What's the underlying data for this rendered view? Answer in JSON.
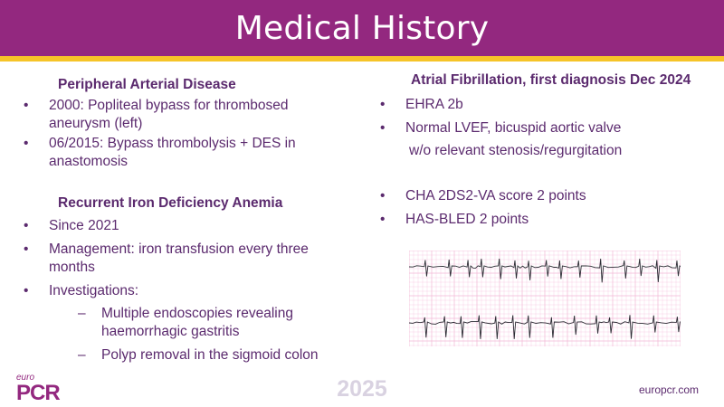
{
  "slide": {
    "title": "Medical History",
    "left": {
      "pad_heading": "Peripheral Arterial Disease",
      "pad_items": [
        "2000: Popliteal bypass for thrombosed aneurysm (left)",
        "06/2015: Bypass thrombolysis + DES in anastomosis"
      ],
      "anemia_heading": "Recurrent Iron Deficiency Anemia",
      "anemia_items": [
        "Since 2021",
        "Management: iron transfusion every three months",
        "Investigations:"
      ],
      "investigations": [
        "Multiple endoscopies revealing haemorrhagic gastritis",
        "Polyp removal in the sigmoid colon"
      ]
    },
    "right": {
      "af_heading": "Atrial Fibrillation, first diagnosis Dec 2024",
      "af_items": [
        "EHRA 2b",
        "Normal LVEF, bicuspid aortic valve"
      ],
      "af_continuation": "w/o relevant stenosis/regurgitation",
      "score_items": [
        "CHA 2DS2-VA score 2 points",
        "HAS-BLED 2 points"
      ]
    },
    "footer": {
      "logo_small": "euro",
      "logo_main": "PCR",
      "year": "2025",
      "website": "europcr.com"
    },
    "colors": {
      "header": "#93287f",
      "accent": "#f6c428",
      "text": "#5b2a6e",
      "ecg_grid": "#f3b7d6"
    }
  }
}
